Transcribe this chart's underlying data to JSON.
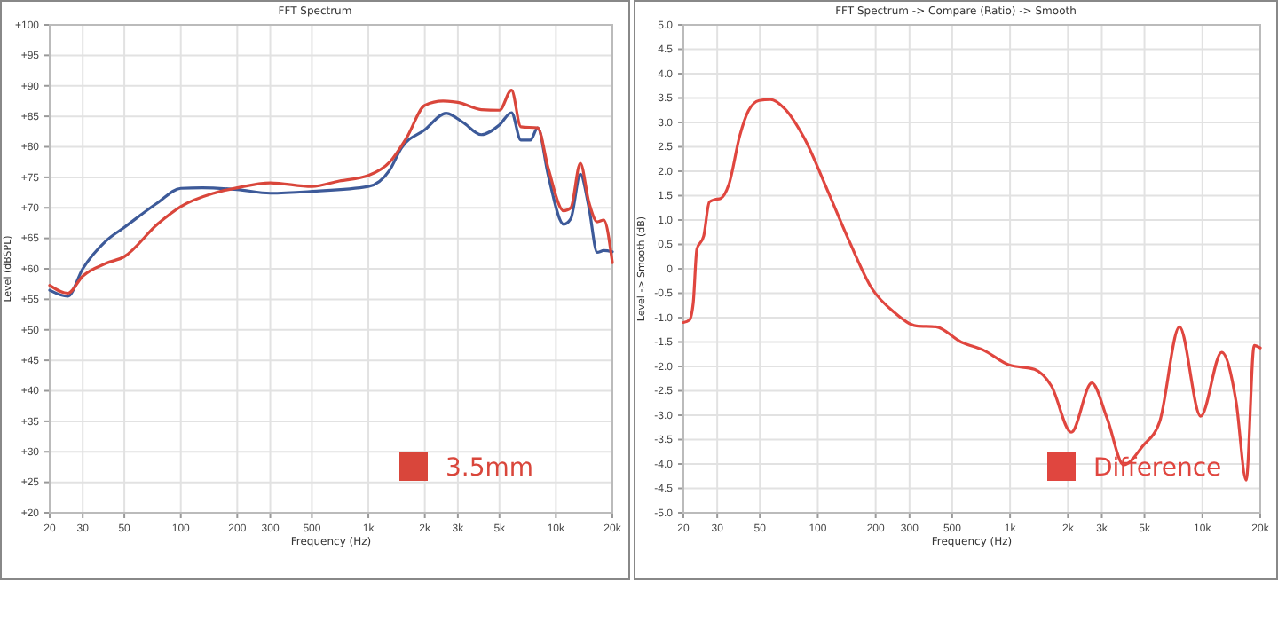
{
  "chart_data": [
    {
      "type": "line",
      "title": "FFT Spectrum",
      "xlabel": "Frequency (Hz)",
      "ylabel": "Level (dBSPL)",
      "log": "x",
      "grid": true,
      "legend": "bottom right",
      "xlim": [
        20,
        20000
      ],
      "ylim": [
        20,
        100
      ],
      "xticks": [
        20,
        30,
        50,
        100,
        200,
        300,
        500,
        {
          "value": 1000,
          "label": "1k"
        },
        {
          "value": 2000,
          "label": "2k"
        },
        {
          "value": 3000,
          "label": "3k"
        },
        {
          "value": 5000,
          "label": "5k"
        },
        {
          "value": 10000,
          "label": "10k"
        },
        {
          "value": 20000,
          "label": "20k"
        }
      ],
      "yticks": [
        {
          "value": 20,
          "label": "+20"
        },
        {
          "value": 25,
          "label": "+25"
        },
        {
          "value": 30,
          "label": "+30"
        },
        {
          "value": 35,
          "label": "+35"
        },
        {
          "value": 40,
          "label": "+40"
        },
        {
          "value": 45,
          "label": "+45"
        },
        {
          "value": 50,
          "label": "+50"
        },
        {
          "value": 55,
          "label": "+55"
        },
        {
          "value": 60,
          "label": "+60"
        },
        {
          "value": 65,
          "label": "+65"
        },
        {
          "value": 70,
          "label": "+70"
        },
        {
          "value": 75,
          "label": "+75"
        },
        {
          "value": 80,
          "label": "+80"
        },
        {
          "value": 85,
          "label": "+85"
        },
        {
          "value": 90,
          "label": "+90"
        },
        {
          "value": 95,
          "label": "+95"
        },
        {
          "value": 100,
          "label": "+100"
        }
      ],
      "series": [
        {
          "color": "#3d5a99",
          "x": [
            20,
            25,
            30,
            40,
            50,
            75,
            100,
            130,
            200,
            300,
            500,
            1000,
            1300,
            1500,
            2000,
            2600,
            3200,
            4000,
            5000,
            5800,
            6500,
            7300,
            8000,
            9100,
            11000,
            12000,
            13500,
            15000,
            16600,
            18000,
            20000
          ],
          "values": [
            56.5,
            55.5,
            60,
            64.6,
            66.8,
            70.8,
            73.2,
            73.3,
            73,
            72.4,
            72.7,
            73.5,
            76.2,
            79.8,
            82.8,
            85.5,
            84,
            82,
            83.6,
            85.6,
            81.1,
            81.1,
            83.1,
            75.3,
            67.3,
            68.2,
            75.5,
            70,
            62.7,
            63,
            62.8
          ]
        },
        {
          "name": "3.5mm",
          "color": "#d9463b",
          "x": [
            20,
            25,
            30,
            40,
            50,
            75,
            100,
            150,
            200,
            300,
            500,
            700,
            1000,
            1300,
            1600,
            2000,
            2500,
            3000,
            4000,
            5000,
            5800,
            6500,
            8000,
            9100,
            11000,
            12000,
            13500,
            15000,
            16600,
            18000,
            20000
          ],
          "values": [
            57.3,
            56,
            58.8,
            60.9,
            62,
            67.3,
            70.2,
            72.4,
            73.3,
            74.1,
            73.5,
            74.4,
            75.3,
            77.5,
            81.5,
            86.8,
            87.5,
            87.3,
            86.1,
            86,
            89.3,
            83.3,
            83.1,
            76.5,
            69.5,
            70,
            77.3,
            70.9,
            67.7,
            68,
            61
          ]
        }
      ]
    },
    {
      "type": "line",
      "title": "FFT Spectrum -> Compare (Ratio) -> Smooth",
      "xlabel": "Frequency (Hz)",
      "ylabel": "Level -> Smooth (dB)",
      "log": "x",
      "grid": true,
      "legend": "bottom right",
      "xlim": [
        20,
        20000
      ],
      "ylim": [
        -5,
        5
      ],
      "xticks": [
        20,
        30,
        50,
        100,
        200,
        300,
        500,
        {
          "value": 1000,
          "label": "1k"
        },
        {
          "value": 2000,
          "label": "2k"
        },
        {
          "value": 3000,
          "label": "3k"
        },
        {
          "value": 5000,
          "label": "5k"
        },
        {
          "value": 10000,
          "label": "10k"
        },
        {
          "value": 20000,
          "label": "20k"
        }
      ],
      "yticks": [
        {
          "value": -5,
          "label": "-5.0"
        },
        -4.5,
        {
          "value": -4,
          "label": "-4.0"
        },
        -3.5,
        {
          "value": -3,
          "label": "-3.0"
        },
        -2.5,
        {
          "value": -2,
          "label": "-2.0"
        },
        -1.5,
        {
          "value": -1,
          "label": "-1.0"
        },
        -0.5,
        0,
        0.5,
        {
          "value": 1,
          "label": "1.0"
        },
        1.5,
        {
          "value": 2,
          "label": "2.0"
        },
        2.5,
        {
          "value": 3,
          "label": "3.0"
        },
        3.5,
        {
          "value": 4,
          "label": "4.0"
        },
        4.5,
        {
          "value": 5,
          "label": "5.0"
        }
      ],
      "series": [
        {
          "name": "Difference",
          "color": "#e0463f",
          "x": [
            20,
            21.5,
            22.5,
            23.5,
            25.5,
            27.3,
            29.1,
            31.2,
            34.5,
            39.3,
            43.6,
            49.6,
            56.7,
            67,
            85,
            112,
            146,
            191,
            250,
            326,
            412,
            556,
            730,
            988,
            1340,
            1640,
            2080,
            2660,
            3200,
            3900,
            4900,
            6000,
            7600,
            9800,
            12600,
            15000,
            16900,
            18600,
            20000
          ],
          "values": [
            -1.1,
            -1.05,
            -0.7,
            0.4,
            0.67,
            1.37,
            1.42,
            1.44,
            1.73,
            2.73,
            3.24,
            3.45,
            3.47,
            3.29,
            2.68,
            1.62,
            0.56,
            -0.4,
            -0.89,
            -1.17,
            -1.19,
            -1.5,
            -1.67,
            -1.97,
            -2.06,
            -2.4,
            -3.35,
            -2.34,
            -3.07,
            -4.02,
            -3.63,
            -3.13,
            -1.19,
            -3.02,
            -1.71,
            -2.74,
            -4.33,
            -1.57,
            -1.62
          ]
        }
      ]
    }
  ]
}
